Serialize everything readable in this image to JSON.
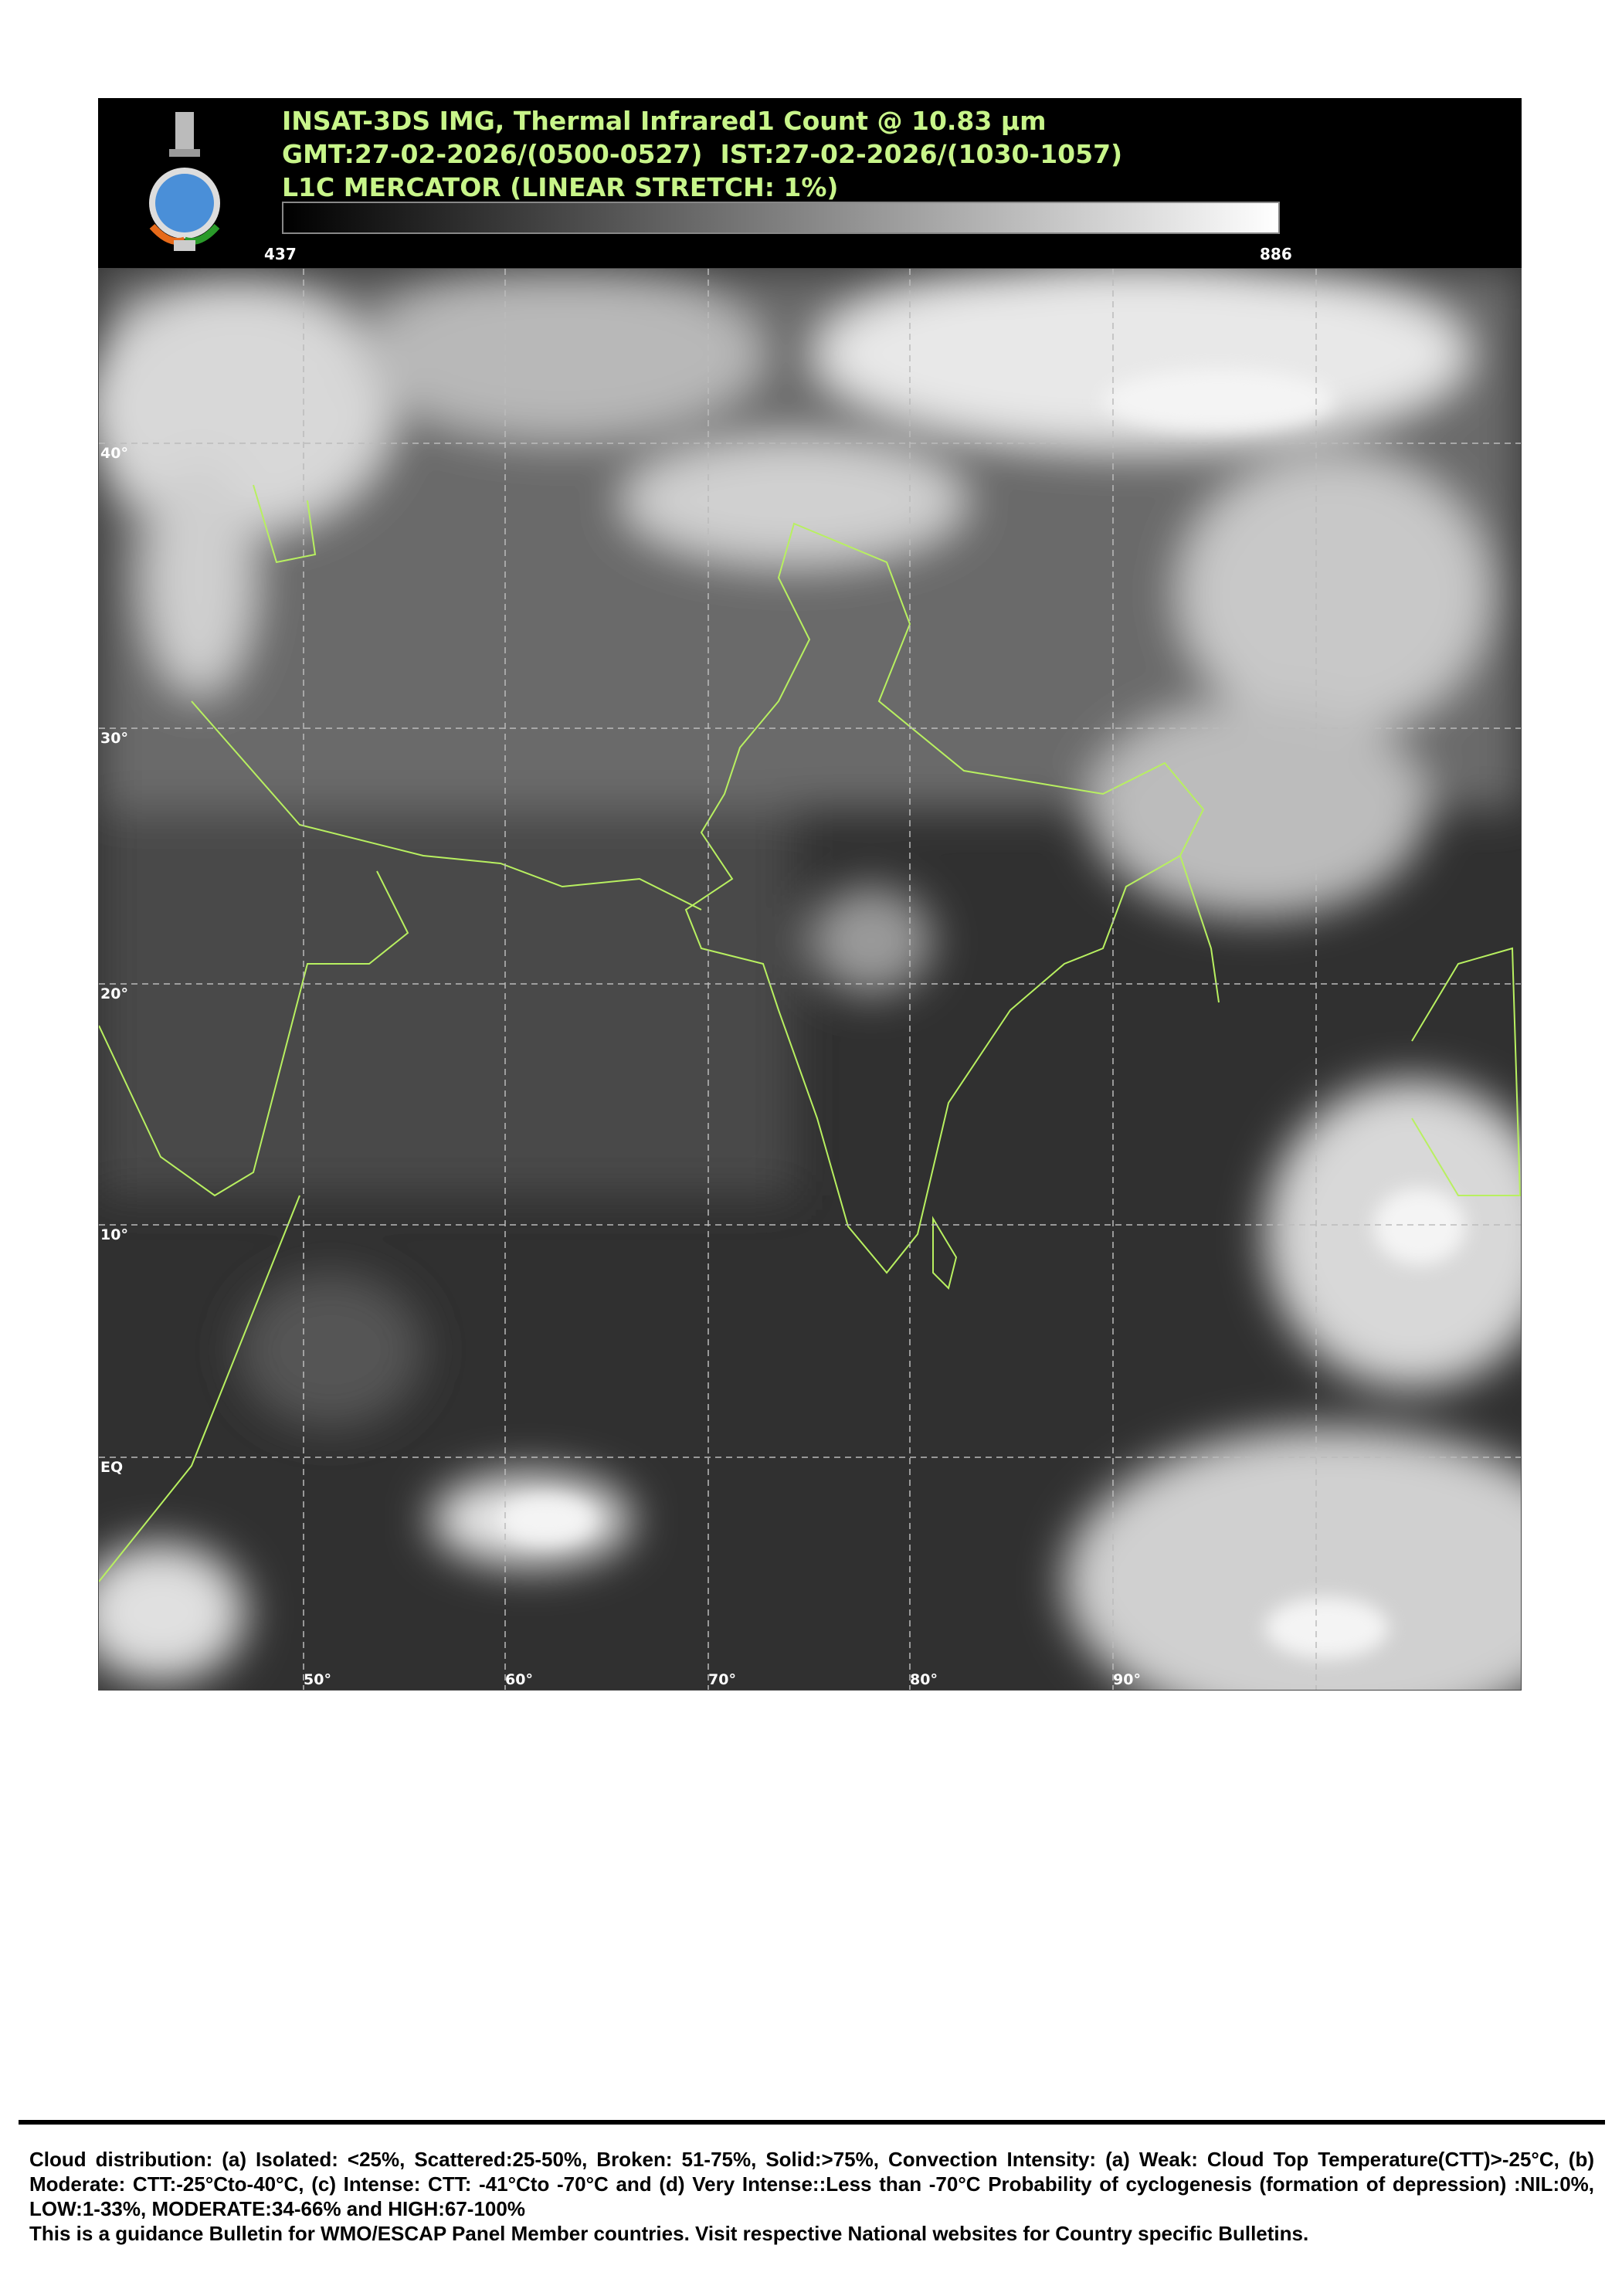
{
  "header": {
    "title_line1": "INSAT-3DS IMG, Thermal Infrared1 Count @ 10.83 µm",
    "title_line2": "GMT:27-02-2026/(0500-0527)  IST:27-02-2026/(1030-1057)",
    "title_line3": "L1C MERCATOR (LINEAR STRETCH: 1%)",
    "colorbar_min": "437",
    "colorbar_max": "886",
    "text_color": "#c8f58a",
    "logo": "emblem-and-imd-seal-icon"
  },
  "map": {
    "lat_labels": [
      "40°",
      "30°",
      "20°",
      "10°",
      "EQ"
    ],
    "lon_labels": [
      "50°",
      "60°",
      "70°",
      "80°",
      "90°"
    ],
    "border_color": "#b8f060"
  },
  "footer": {
    "line1": "Cloud distribution: (a) Isolated: <25%, Scattered:25-50%, Broken: 51-75%, Solid:>75%, Convection Intensity: (a) Weak: Cloud Top Temperature(CTT)>-25°C, (b) Moderate: CTT:-25°Cto-40°C, (c) Intense: CTT: -41°Cto -70°C and (d) Very Intense::Less than -70°C Probability of cyclogenesis (formation of depression) :NIL:0%, LOW:1-33%, MODERATE:34-66% and HIGH:67-100%",
    "line2": "This is a guidance Bulletin for WMO/ESCAP Panel Member countries. Visit respective National websites for Country specific Bulletins."
  }
}
